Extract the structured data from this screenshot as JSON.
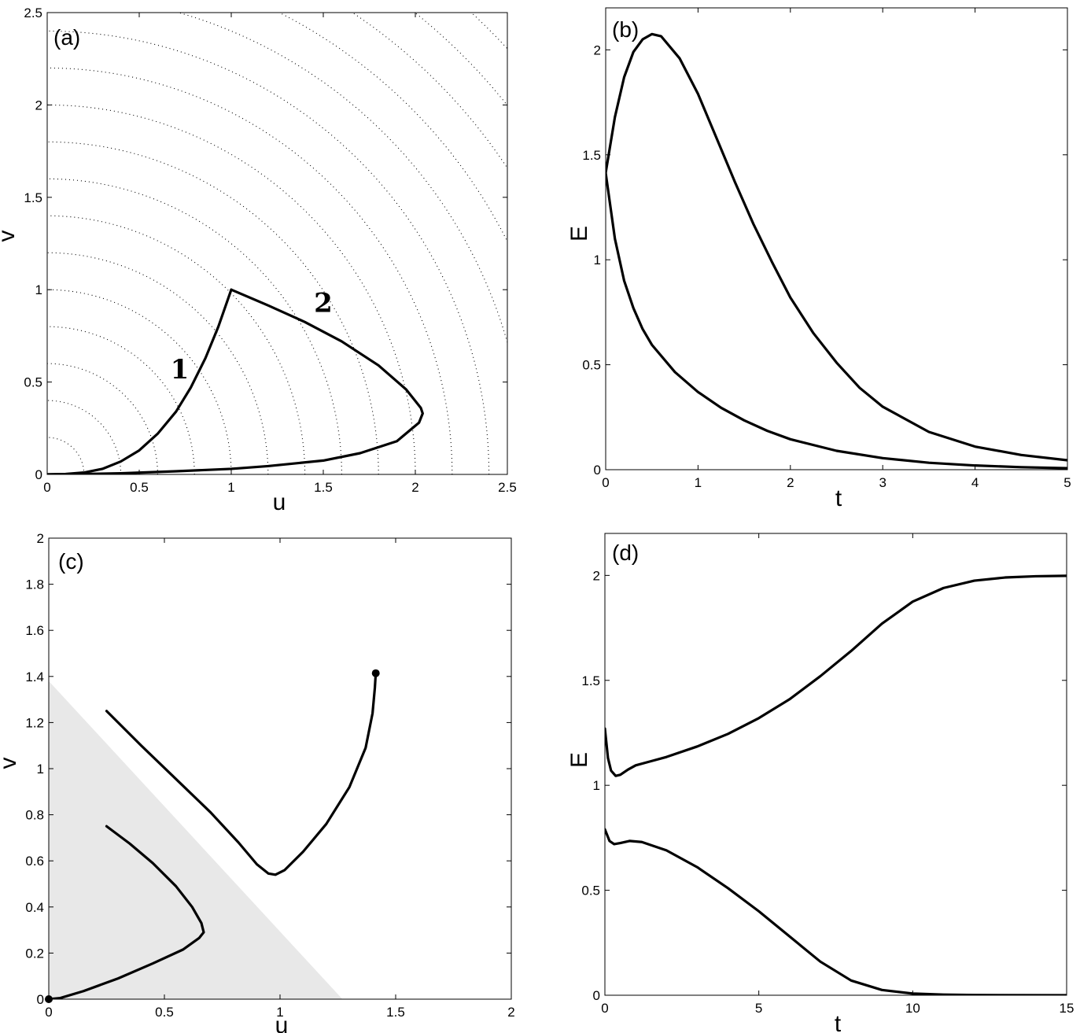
{
  "figure": {
    "panels": [
      {
        "id": "a",
        "label": "(a)"
      },
      {
        "id": "b",
        "label": "(b)"
      },
      {
        "id": "c",
        "label": "(c)"
      },
      {
        "id": "d",
        "label": "(d)"
      }
    ]
  },
  "chart_data": [
    {
      "panel": "a",
      "type": "line",
      "title": "",
      "panel_label": "(a)",
      "xlabel": "u",
      "ylabel": "v",
      "xlim": [
        0,
        2.5
      ],
      "ylim": [
        0,
        2.5
      ],
      "xticks": [
        "0",
        "0.5",
        "1",
        "1.5",
        "2",
        "2.5"
      ],
      "yticks": [
        "0",
        "0.5",
        "1",
        "1.5",
        "2",
        "2.5"
      ],
      "contours": {
        "style": "dotted",
        "shape": "circles centered at origin",
        "radii": [
          0.2,
          0.4,
          0.6,
          0.8,
          1.0,
          1.2,
          1.4,
          1.6,
          1.8,
          2.0,
          2.2,
          2.4,
          2.6,
          2.8,
          3.0,
          3.2,
          3.4
        ]
      },
      "curve_labels": [
        {
          "text": "1",
          "x": 0.72,
          "y": 0.52
        },
        {
          "text": "2",
          "x": 1.5,
          "y": 0.88
        }
      ],
      "series": [
        {
          "name": "1",
          "points": [
            [
              1.0,
              1.0
            ],
            [
              0.93,
              0.8
            ],
            [
              0.86,
              0.63
            ],
            [
              0.78,
              0.47
            ],
            [
              0.7,
              0.34
            ],
            [
              0.6,
              0.22
            ],
            [
              0.5,
              0.13
            ],
            [
              0.4,
              0.07
            ],
            [
              0.3,
              0.03
            ],
            [
              0.2,
              0.01
            ],
            [
              0.1,
              0.002
            ],
            [
              0.0,
              0.0
            ]
          ]
        },
        {
          "name": "2",
          "points": [
            [
              1.0,
              1.0
            ],
            [
              1.2,
              0.915
            ],
            [
              1.4,
              0.825
            ],
            [
              1.6,
              0.72
            ],
            [
              1.8,
              0.59
            ],
            [
              1.95,
              0.46
            ],
            [
              2.03,
              0.36
            ],
            [
              2.04,
              0.33
            ],
            [
              2.02,
              0.28
            ],
            [
              1.9,
              0.18
            ],
            [
              1.7,
              0.115
            ],
            [
              1.5,
              0.075
            ],
            [
              1.2,
              0.045
            ],
            [
              1.0,
              0.03
            ],
            [
              0.7,
              0.017
            ],
            [
              0.4,
              0.006
            ],
            [
              0.2,
              0.002
            ],
            [
              0.0,
              0.0
            ]
          ]
        }
      ]
    },
    {
      "panel": "b",
      "type": "line",
      "title": "",
      "panel_label": "(b)",
      "xlabel": "t",
      "ylabel": "E",
      "xlim": [
        0,
        5
      ],
      "ylim": [
        0,
        2.2
      ],
      "xticks": [
        "0",
        "1",
        "2",
        "3",
        "4",
        "5"
      ],
      "yticks": [
        "0",
        "0.5",
        "1",
        "1.5",
        "2"
      ],
      "series": [
        {
          "name": "",
          "points": [
            [
              0,
              1.414
            ],
            [
              0.1,
              1.68
            ],
            [
              0.2,
              1.87
            ],
            [
              0.3,
              1.99
            ],
            [
              0.4,
              2.05
            ],
            [
              0.5,
              2.075
            ],
            [
              0.6,
              2.065
            ],
            [
              0.8,
              1.96
            ],
            [
              1.0,
              1.79
            ],
            [
              1.2,
              1.58
            ],
            [
              1.4,
              1.37
            ],
            [
              1.6,
              1.17
            ],
            [
              1.8,
              0.99
            ],
            [
              2.0,
              0.82
            ],
            [
              2.25,
              0.65
            ],
            [
              2.5,
              0.51
            ],
            [
              2.75,
              0.39
            ],
            [
              3.0,
              0.3
            ],
            [
              3.5,
              0.18
            ],
            [
              4.0,
              0.11
            ],
            [
              4.5,
              0.07
            ],
            [
              5.0,
              0.045
            ]
          ]
        },
        {
          "name": "",
          "points": [
            [
              0,
              1.414
            ],
            [
              0.1,
              1.1
            ],
            [
              0.2,
              0.9
            ],
            [
              0.3,
              0.77
            ],
            [
              0.4,
              0.67
            ],
            [
              0.5,
              0.595
            ],
            [
              0.75,
              0.465
            ],
            [
              1.0,
              0.37
            ],
            [
              1.25,
              0.295
            ],
            [
              1.5,
              0.235
            ],
            [
              1.75,
              0.185
            ],
            [
              2.0,
              0.145
            ],
            [
              2.5,
              0.09
            ],
            [
              3.0,
              0.055
            ],
            [
              3.5,
              0.033
            ],
            [
              4.0,
              0.02
            ],
            [
              4.5,
              0.012
            ],
            [
              5.0,
              0.007
            ]
          ]
        }
      ]
    },
    {
      "panel": "c",
      "type": "line",
      "title": "",
      "panel_label": "(c)",
      "xlabel": "u",
      "ylabel": "v",
      "xlim": [
        0,
        2
      ],
      "ylim": [
        0,
        2
      ],
      "xticks": [
        "0",
        "0.5",
        "1",
        "1.5",
        "2"
      ],
      "yticks": [
        "0",
        "0.2",
        "0.4",
        "0.6",
        "0.8",
        "1",
        "1.2",
        "1.4",
        "1.6",
        "1.8",
        "2"
      ],
      "shaded_region": {
        "vertices": [
          [
            0,
            0
          ],
          [
            0,
            1.38
          ],
          [
            1.27,
            0
          ]
        ],
        "color": "#e8e8e8"
      },
      "markers": [
        [
          0,
          0
        ],
        [
          1.414,
          1.414
        ]
      ],
      "series": [
        {
          "name": "",
          "points": [
            [
              0.25,
              0.75
            ],
            [
              0.35,
              0.675
            ],
            [
              0.45,
              0.59
            ],
            [
              0.55,
              0.49
            ],
            [
              0.62,
              0.4
            ],
            [
              0.66,
              0.33
            ],
            [
              0.67,
              0.29
            ],
            [
              0.65,
              0.265
            ],
            [
              0.58,
              0.215
            ],
            [
              0.45,
              0.155
            ],
            [
              0.3,
              0.09
            ],
            [
              0.15,
              0.035
            ],
            [
              0.05,
              0.005
            ],
            [
              0.0,
              0.0
            ]
          ]
        },
        {
          "name": "",
          "points": [
            [
              0.25,
              1.25
            ],
            [
              0.4,
              1.1
            ],
            [
              0.55,
              0.955
            ],
            [
              0.7,
              0.81
            ],
            [
              0.82,
              0.68
            ],
            [
              0.9,
              0.585
            ],
            [
              0.95,
              0.545
            ],
            [
              0.98,
              0.54
            ],
            [
              1.02,
              0.56
            ],
            [
              1.1,
              0.64
            ],
            [
              1.2,
              0.76
            ],
            [
              1.3,
              0.92
            ],
            [
              1.37,
              1.09
            ],
            [
              1.4,
              1.24
            ],
            [
              1.41,
              1.35
            ],
            [
              1.414,
              1.414
            ]
          ]
        }
      ]
    },
    {
      "panel": "d",
      "type": "line",
      "title": "",
      "panel_label": "(d)",
      "xlabel": "t",
      "ylabel": "E",
      "xlim": [
        0,
        15
      ],
      "ylim": [
        0,
        2.2
      ],
      "xticks": [
        "0",
        "5",
        "10",
        "15"
      ],
      "yticks": [
        "0",
        "0.5",
        "1",
        "1.5",
        "2"
      ],
      "series": [
        {
          "name": "",
          "points": [
            [
              0,
              1.27
            ],
            [
              0.1,
              1.13
            ],
            [
              0.2,
              1.07
            ],
            [
              0.35,
              1.045
            ],
            [
              0.5,
              1.05
            ],
            [
              0.75,
              1.075
            ],
            [
              1.0,
              1.095
            ],
            [
              1.5,
              1.115
            ],
            [
              2.0,
              1.135
            ],
            [
              3.0,
              1.185
            ],
            [
              4.0,
              1.245
            ],
            [
              5.0,
              1.32
            ],
            [
              6.0,
              1.41
            ],
            [
              7.0,
              1.52
            ],
            [
              8.0,
              1.64
            ],
            [
              9.0,
              1.77
            ],
            [
              10.0,
              1.875
            ],
            [
              11.0,
              1.94
            ],
            [
              12.0,
              1.975
            ],
            [
              13.0,
              1.99
            ],
            [
              14.0,
              1.996
            ],
            [
              15.0,
              1.998
            ]
          ]
        },
        {
          "name": "",
          "points": [
            [
              0,
              0.79
            ],
            [
              0.15,
              0.735
            ],
            [
              0.3,
              0.72
            ],
            [
              0.5,
              0.725
            ],
            [
              0.8,
              0.735
            ],
            [
              1.2,
              0.73
            ],
            [
              2.0,
              0.69
            ],
            [
              3.0,
              0.61
            ],
            [
              4.0,
              0.51
            ],
            [
              5.0,
              0.4
            ],
            [
              6.0,
              0.28
            ],
            [
              7.0,
              0.16
            ],
            [
              8.0,
              0.07
            ],
            [
              9.0,
              0.025
            ],
            [
              10.0,
              0.008
            ],
            [
              11.0,
              0.003
            ],
            [
              12.0,
              0.001
            ],
            [
              15.0,
              0.0
            ]
          ]
        }
      ]
    }
  ]
}
